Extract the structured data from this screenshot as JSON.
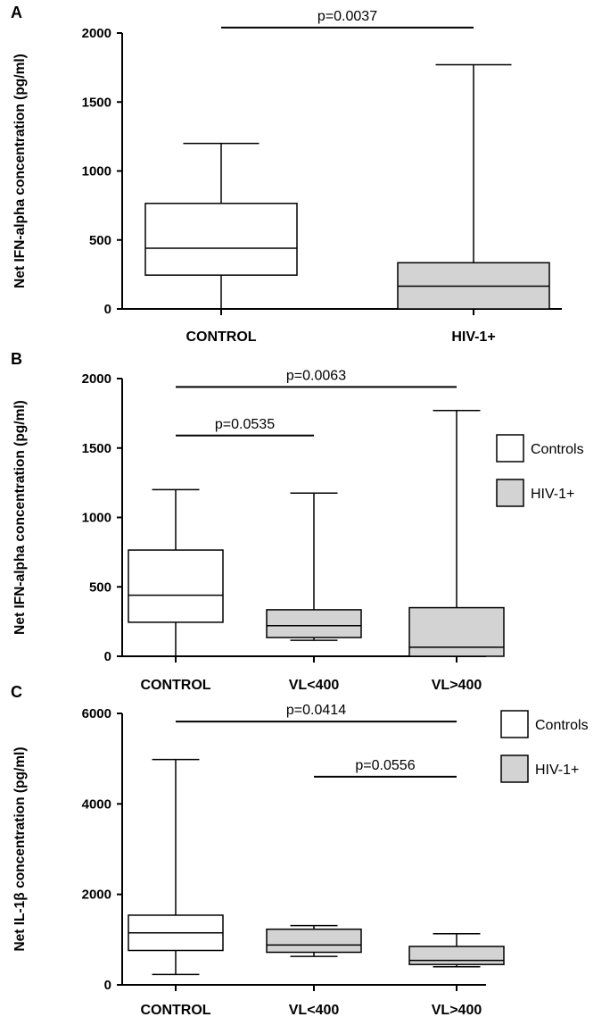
{
  "colors": {
    "control": "#ffffff",
    "hiv": "#d3d3d3",
    "stroke": "#000000"
  },
  "chart_data": [
    {
      "panel": "A",
      "type": "boxplot",
      "ylabel": "Net IFN-alpha concentration (pg/ml)",
      "ylim": [
        0,
        2000
      ],
      "yticks": [
        "0",
        "500",
        "1000",
        "1500",
        "2000"
      ],
      "categories": [
        "CONTROL",
        "HIV-1+"
      ],
      "boxes": [
        {
          "category": "CONTROL",
          "group": "control",
          "min": 0,
          "q1": 245,
          "median": 440,
          "q3": 765,
          "max": 1200
        },
        {
          "category": "HIV-1+",
          "group": "hiv",
          "min": 0,
          "q1": 0,
          "median": 165,
          "q3": 335,
          "max": 1770
        }
      ],
      "pvalues": [
        {
          "label": "p=0.0037",
          "from": 0,
          "to": 1,
          "level": 2040
        }
      ],
      "legend": []
    },
    {
      "panel": "B",
      "type": "boxplot",
      "ylabel": "Net IFN-alpha concentration (pg/ml)",
      "ylim": [
        0,
        2000
      ],
      "yticks": [
        "0",
        "500",
        "1000",
        "1500",
        "2000"
      ],
      "categories": [
        "CONTROL",
        "VL<400",
        "VL>400"
      ],
      "boxes": [
        {
          "category": "CONTROL",
          "group": "control",
          "min": 0,
          "q1": 245,
          "median": 440,
          "q3": 765,
          "max": 1200
        },
        {
          "category": "VL<400",
          "group": "hiv",
          "min": 115,
          "q1": 135,
          "median": 220,
          "q3": 335,
          "max": 1175
        },
        {
          "category": "VL>400",
          "group": "hiv",
          "min": 0,
          "q1": 0,
          "median": 65,
          "q3": 350,
          "max": 1770
        }
      ],
      "pvalues": [
        {
          "label": "p=0.0063",
          "from": 0,
          "to": 2,
          "level": 1940
        },
        {
          "label": "p=0.0535",
          "from": 0,
          "to": 1,
          "level": 1590
        }
      ],
      "legend": [
        {
          "label": "Controls",
          "group": "control"
        },
        {
          "label": "HIV-1+",
          "group": "hiv"
        }
      ]
    },
    {
      "panel": "C",
      "type": "boxplot",
      "ylabel": "Net IL-1β concentration (pg/ml)",
      "ylim": [
        0,
        6000
      ],
      "yticks": [
        "0",
        "2000",
        "4000",
        "6000"
      ],
      "categories": [
        "CONTROL",
        "VL<400",
        "VL>400"
      ],
      "boxes": [
        {
          "category": "CONTROL",
          "group": "control",
          "min": 230,
          "q1": 760,
          "median": 1150,
          "q3": 1540,
          "max": 4980
        },
        {
          "category": "VL<400",
          "group": "hiv",
          "min": 630,
          "q1": 720,
          "median": 880,
          "q3": 1230,
          "max": 1310
        },
        {
          "category": "VL>400",
          "group": "hiv",
          "min": 400,
          "q1": 450,
          "median": 540,
          "q3": 850,
          "max": 1130
        }
      ],
      "pvalues": [
        {
          "label": "p=0.0414",
          "from": 0,
          "to": 2,
          "level": 5820
        },
        {
          "label": "p=0.0556",
          "from": 1,
          "to": 2,
          "level": 4600
        }
      ],
      "legend": [
        {
          "label": "Controls",
          "group": "control"
        },
        {
          "label": "HIV-1+",
          "group": "hiv"
        }
      ]
    }
  ]
}
